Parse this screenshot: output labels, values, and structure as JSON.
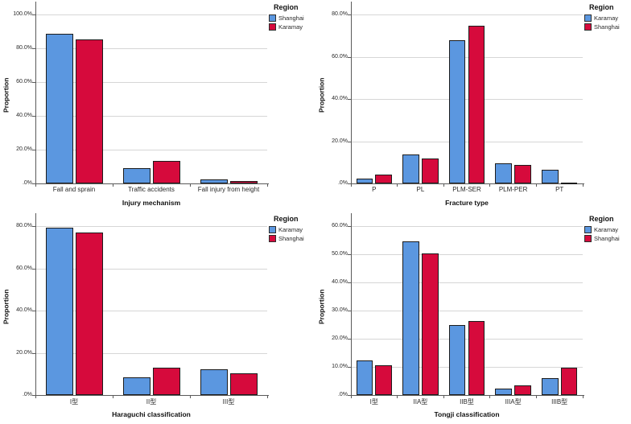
{
  "figure": {
    "background": "#ffffff"
  },
  "palette": {
    "blue": "#5b97e0",
    "red": "#d60a3c",
    "bar_border": "#1c1c1c",
    "grid": "#d6d6d6",
    "axis": "#5a5a5a",
    "text": "#2a2a2a"
  },
  "chart_data": [
    {
      "type": "bar",
      "title": "",
      "xlabel": "Injury mechanism",
      "ylabel": "Proportion",
      "legend_title": "Region",
      "legend_position": "top-right",
      "grid": true,
      "ylim": [
        0,
        100
      ],
      "tick_values": [
        0,
        20,
        40,
        60,
        80,
        100
      ],
      "tick_labels": [
        ".0%",
        "20.0%",
        "40.0%",
        "60.0%",
        "80.0%",
        "100.0%"
      ],
      "categories": [
        "Fall and sprain",
        "Traffic accidents",
        "Fall injury from height"
      ],
      "series": [
        {
          "name": "Shanghai",
          "color": "blue",
          "values": [
            88.6,
            9.1,
            2.3
          ]
        },
        {
          "name": "Karamay",
          "color": "red",
          "values": [
            85.3,
            13.3,
            1.4
          ]
        }
      ]
    },
    {
      "type": "bar",
      "title": "",
      "xlabel": "Fracture type",
      "ylabel": "Proportion",
      "legend_title": "Region",
      "legend_position": "top-right",
      "grid": true,
      "ylim": [
        0,
        80
      ],
      "tick_values": [
        0,
        20,
        40,
        60,
        80
      ],
      "tick_labels": [
        ".0%",
        "20.0%",
        "40.0%",
        "60.0%",
        "80.0%"
      ],
      "categories": [
        "P",
        "PL",
        "PLM-SER",
        "PLM-PER",
        "PT"
      ],
      "series": [
        {
          "name": "Karamay",
          "color": "blue",
          "values": [
            2.3,
            13.6,
            68.0,
            9.5,
            6.6
          ]
        },
        {
          "name": "Shanghai",
          "color": "red",
          "values": [
            4.2,
            12.0,
            74.7,
            8.6,
            0.5
          ]
        }
      ]
    },
    {
      "type": "bar",
      "title": "",
      "xlabel": "Haraguchi classification",
      "ylabel": "Proportion",
      "legend_title": "Region",
      "legend_position": "top-right",
      "grid": true,
      "ylim": [
        0,
        80
      ],
      "tick_values": [
        0,
        20,
        40,
        60,
        80
      ],
      "tick_labels": [
        ".0%",
        "20.0%",
        "40.0%",
        "60.0%",
        "80.0%"
      ],
      "categories": [
        "I型",
        "II型",
        "III型"
      ],
      "series": [
        {
          "name": "Karamay",
          "color": "blue",
          "values": [
            79.3,
            8.5,
            12.2
          ]
        },
        {
          "name": "Shanghai",
          "color": "red",
          "values": [
            76.8,
            13.0,
            10.2
          ]
        }
      ]
    },
    {
      "type": "bar",
      "title": "",
      "xlabel": "Tongji classification",
      "ylabel": "Proportion",
      "legend_title": "Region",
      "legend_position": "top-right",
      "grid": true,
      "ylim": [
        0,
        60
      ],
      "tick_values": [
        0,
        10,
        20,
        30,
        40,
        50,
        60
      ],
      "tick_labels": [
        ".0%",
        "10.0%",
        "20.0%",
        "30.0%",
        "40.0%",
        "50.0%",
        "60.0%"
      ],
      "categories": [
        "I型",
        "IIA型",
        "IIB型",
        "IIIA型",
        "IIIB型"
      ],
      "series": [
        {
          "name": "Karamay",
          "color": "blue",
          "values": [
            12.3,
            54.5,
            24.8,
            2.3,
            6.1
          ]
        },
        {
          "name": "Shanghai",
          "color": "red",
          "values": [
            10.6,
            50.2,
            26.2,
            3.4,
            9.6
          ]
        }
      ]
    }
  ]
}
